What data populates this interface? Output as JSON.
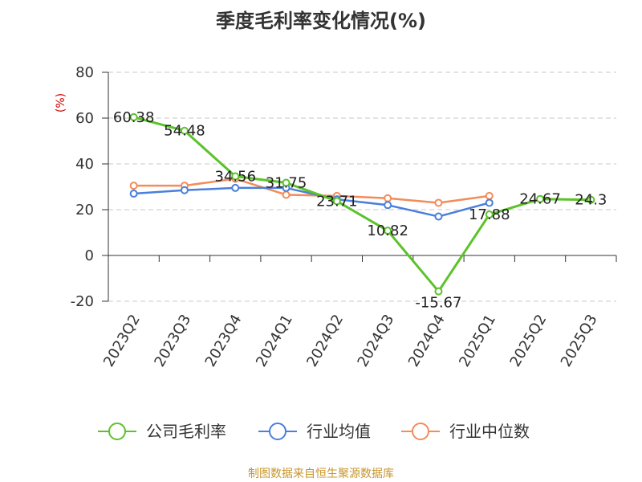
{
  "chart_data": {
    "type": "line",
    "title": "季度毛利率变化情况(%)",
    "ylabel": "(%)",
    "xlabel": "",
    "categories": [
      "2023Q2",
      "2023Q3",
      "2023Q4",
      "2024Q1",
      "2024Q2",
      "2024Q3",
      "2024Q4",
      "2025Q1",
      "2025Q2",
      "2025Q3"
    ],
    "ylim": [
      -20,
      80
    ],
    "yticks": [
      -20,
      0,
      20,
      40,
      60,
      80
    ],
    "grid": true,
    "legend_position": "bottom",
    "series": [
      {
        "name": "公司毛利率",
        "color": "#5cc22a",
        "values": [
          60.38,
          54.48,
          34.56,
          31.75,
          23.71,
          10.82,
          -15.67,
          17.88,
          24.67,
          24.3
        ],
        "labels": [
          "60.38",
          "54.48",
          "34.56",
          "31.75",
          "23.71",
          "10.82",
          "-15.67",
          "17.88",
          "24.67",
          "24.3"
        ]
      },
      {
        "name": "行业均值",
        "color": "#4a7fdb",
        "values": [
          27,
          28.5,
          29.5,
          29.5,
          24.5,
          22,
          17,
          23,
          null,
          null
        ]
      },
      {
        "name": "行业中位数",
        "color": "#f28c5a",
        "values": [
          30.5,
          30.5,
          33.5,
          26.5,
          26,
          25,
          23,
          26,
          null,
          null
        ]
      }
    ]
  },
  "source": "制图数据来自恒生聚源数据库"
}
